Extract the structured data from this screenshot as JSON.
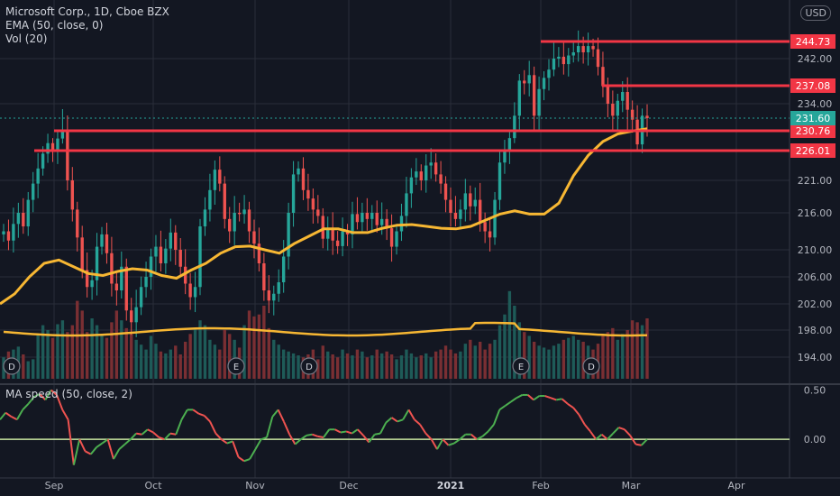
{
  "legend": {
    "symbol": "Microsoft Corp., 1D, Cboe BZX",
    "ema": "EMA (50, close, 0)",
    "vol": "Vol (20)",
    "indicator": "MA speed (50, close, 2)"
  },
  "currency": "USD",
  "colors": {
    "background": "#131722",
    "grid": "#2a2e39",
    "up": "#26a69a",
    "down": "#ef5350",
    "ema": "#f7b733",
    "level": "#f23645",
    "last": "#26a69a",
    "speed_up": "#4caf50",
    "speed_down": "#ef5350",
    "zero": "#c8e6a0"
  },
  "chart_data": [
    {
      "type": "candlestick",
      "title": "Microsoft Corp., 1D, Cboe BZX",
      "x_ticks": [
        "Sep",
        "Oct",
        "Nov",
        "Dec",
        "2021",
        "Feb",
        "Mar",
        "Apr"
      ],
      "y_ticks": [
        194.0,
        198.0,
        202.0,
        206.0,
        210.0,
        216.0,
        221.0,
        226.01,
        230.76,
        231.6,
        234.0,
        237.08,
        242.0,
        244.73
      ],
      "ylim": [
        192.0,
        247.5
      ],
      "levels": [
        {
          "label": "244.73",
          "value": 244.73
        },
        {
          "label": "237.08",
          "value": 237.08
        },
        {
          "label": "230.76",
          "value": 230.76
        },
        {
          "label": "226.01",
          "value": 226.01
        }
      ],
      "last_price": {
        "label": "231.60",
        "value": 231.6
      },
      "tick_labels": [
        "244.73",
        "242.00",
        "237.08",
        "234.00",
        "231.60",
        "230.76",
        "226.01",
        "221.00",
        "216.00",
        "210.00",
        "206.00",
        "202.00",
        "198.00",
        "194.00"
      ],
      "events": [
        {
          "label": "D",
          "date": "Aug 19"
        },
        {
          "label": "E",
          "date": "Oct 28"
        },
        {
          "label": "D",
          "date": "Nov 18"
        },
        {
          "label": "E",
          "date": "Jan 27"
        },
        {
          "label": "D",
          "date": "Feb 17"
        }
      ],
      "series_close": [
        213.0,
        211.5,
        214.2,
        216.0,
        213.8,
        218.0,
        220.5,
        223.0,
        225.5,
        227.8,
        226.0,
        228.9,
        230.5,
        221.0,
        216.5,
        212.0,
        207.0,
        204.5,
        205.5,
        210.5,
        212.5,
        209.5,
        205.0,
        204.0,
        207.5,
        201.0,
        199.2,
        201.5,
        204.5,
        206.0,
        209.0,
        210.5,
        208.0,
        210.2,
        212.8,
        210.0,
        207.5,
        205.0,
        203.0,
        204.5,
        213.8,
        216.5,
        219.5,
        222.8,
        220.5,
        215.0,
        213.0,
        216.0,
        215.8,
        216.5,
        213.0,
        211.0,
        208.0,
        204.0,
        202.5,
        203.5,
        205.2,
        209.0,
        216.0,
        222.0,
        223.0,
        219.5,
        218.2,
        216.5,
        215.5,
        211.8,
        213.5,
        211.5,
        210.6,
        213.0,
        212.5,
        215.8,
        214.5,
        216.0,
        215.0,
        216.0,
        214.0,
        215.0,
        213.5,
        210.5,
        213.0,
        215.5,
        219.0,
        221.5,
        222.5,
        221.0,
        223.5,
        224.0,
        222.0,
        220.5,
        218.0,
        216.0,
        215.0,
        216.5,
        219.0,
        217.0,
        218.0,
        214.5,
        213.0,
        212.0,
        218.0,
        224.0,
        226.0,
        229.0,
        232.0,
        238.0,
        237.5,
        239.0,
        232.0,
        236.5,
        238.5,
        240.0,
        242.0,
        242.3,
        241.0,
        242.5,
        243.0,
        244.0,
        243.0,
        244.0,
        243.5,
        240.5,
        237.0,
        234.0,
        232.0,
        234.5,
        236.0,
        233.0,
        231.5,
        227.5,
        232.0,
        231.6
      ],
      "ema": [
        202.0,
        203.5,
        206.0,
        208.0,
        208.5,
        207.5,
        206.5,
        206.2,
        206.8,
        207.2,
        207.0,
        206.2,
        205.8,
        207.0,
        208.0,
        209.5,
        210.5,
        210.6,
        210.0,
        209.5,
        211.0,
        212.2,
        213.4,
        213.4,
        212.8,
        212.8,
        213.5,
        214.0,
        214.1,
        213.8,
        213.5,
        213.4,
        213.8,
        214.8,
        215.8,
        216.3,
        215.8,
        215.8,
        217.5,
        221.8,
        225.2,
        228.2,
        230.0,
        230.7,
        230.9
      ],
      "volume_pct": [
        22,
        28,
        30,
        33,
        25,
        18,
        20,
        45,
        55,
        50,
        42,
        56,
        60,
        48,
        55,
        80,
        70,
        48,
        62,
        55,
        44,
        42,
        58,
        70,
        60,
        52,
        46,
        40,
        35,
        30,
        44,
        36,
        28,
        26,
        30,
        34,
        25,
        38,
        46,
        52,
        60,
        55,
        40,
        35,
        30,
        50,
        46,
        40,
        32,
        55,
        70,
        64,
        66,
        75,
        52,
        40,
        35,
        30,
        28,
        26,
        24,
        22,
        25,
        30,
        20,
        34,
        28,
        25,
        22,
        30,
        26,
        24,
        30,
        28,
        22,
        24,
        30,
        26,
        28,
        25,
        20,
        24,
        30,
        26,
        22,
        24,
        26,
        22,
        28,
        30,
        34,
        30,
        26,
        28,
        36,
        40,
        34,
        38,
        30,
        36,
        40,
        55,
        66,
        90,
        75,
        58,
        48,
        44,
        38,
        34,
        32,
        30,
        34,
        36,
        40,
        42,
        44,
        40,
        38,
        34,
        30,
        36,
        44,
        48,
        52,
        40,
        46,
        50,
        60,
        58,
        55,
        62
      ]
    },
    {
      "type": "line",
      "title": "MA speed (50, close, 2)",
      "y_ticks": [
        0.5,
        0.0
      ],
      "tick_labels": [
        "0.50",
        "0.00"
      ],
      "ylim": [
        -0.3,
        0.55
      ],
      "values": [
        0.2,
        0.27,
        0.23,
        0.2,
        0.3,
        0.36,
        0.43,
        0.46,
        0.4,
        0.5,
        0.45,
        0.3,
        0.2,
        -0.26,
        0.0,
        -0.12,
        -0.15,
        -0.08,
        -0.04,
        0.0,
        -0.2,
        -0.1,
        -0.05,
        0.0,
        0.06,
        0.05,
        0.1,
        0.07,
        0.02,
        0.0,
        0.06,
        0.05,
        0.2,
        0.3,
        0.3,
        0.26,
        0.24,
        0.18,
        0.06,
        0.0,
        -0.04,
        -0.02,
        -0.18,
        -0.22,
        -0.2,
        -0.1,
        0.0,
        0.02,
        0.23,
        0.3,
        0.18,
        0.05,
        -0.05,
        0.0,
        0.04,
        0.05,
        0.03,
        0.02,
        0.1,
        0.1,
        0.07,
        0.08,
        0.06,
        0.1,
        0.04,
        -0.03,
        0.05,
        0.06,
        0.17,
        0.22,
        0.18,
        0.2,
        0.3,
        0.2,
        0.15,
        0.06,
        0.0,
        -0.1,
        0.0,
        -0.06,
        -0.04,
        0.0,
        0.05,
        0.05,
        0.0,
        0.03,
        0.08,
        0.15,
        0.3,
        0.34,
        0.38,
        0.42,
        0.45,
        0.45,
        0.4,
        0.44,
        0.44,
        0.42,
        0.4,
        0.41,
        0.36,
        0.32,
        0.25,
        0.15,
        0.08,
        0.0,
        0.05,
        0.0,
        0.06,
        0.12,
        0.1,
        0.04,
        -0.05,
        -0.06,
        0.0
      ]
    }
  ]
}
